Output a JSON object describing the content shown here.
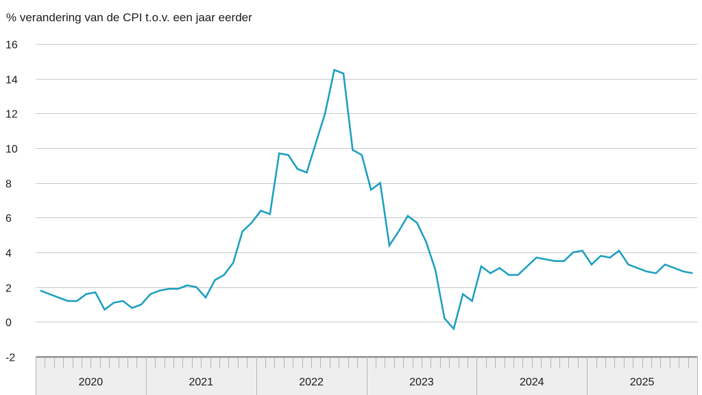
{
  "chart_data": {
    "type": "line",
    "title": "% verandering van de CPI t.o.v. een jaar eerder",
    "xlabel": "",
    "ylabel": "% verandering van de CPI t.o.v. een jaar eerder",
    "ylim": [
      -2,
      16
    ],
    "yticks": [
      -2,
      0,
      2,
      4,
      6,
      8,
      10,
      12,
      14,
      16
    ],
    "grid": true,
    "legend": null,
    "x_groups": [
      "2020",
      "2021",
      "2022",
      "2023",
      "2024",
      "2025"
    ],
    "x": [
      "2020-01",
      "2020-02",
      "2020-03",
      "2020-04",
      "2020-05",
      "2020-06",
      "2020-07",
      "2020-08",
      "2020-09",
      "2020-10",
      "2020-11",
      "2020-12",
      "2021-01",
      "2021-02",
      "2021-03",
      "2021-04",
      "2021-05",
      "2021-06",
      "2021-07",
      "2021-08",
      "2021-09",
      "2021-10",
      "2021-11",
      "2021-12",
      "2022-01",
      "2022-02",
      "2022-03",
      "2022-04",
      "2022-05",
      "2022-06",
      "2022-07",
      "2022-08",
      "2022-09",
      "2022-10",
      "2022-11",
      "2022-12",
      "2023-01",
      "2023-02",
      "2023-03",
      "2023-04",
      "2023-05",
      "2023-06",
      "2023-07",
      "2023-08",
      "2023-09",
      "2023-10",
      "2023-11",
      "2023-12",
      "2024-01",
      "2024-02",
      "2024-03",
      "2024-04",
      "2024-05",
      "2024-06",
      "2024-07",
      "2024-08",
      "2024-09",
      "2024-10",
      "2024-11",
      "2024-12",
      "2025-01",
      "2025-02",
      "2025-03",
      "2025-04",
      "2025-05",
      "2025-06",
      "2025-07",
      "2025-08",
      "2025-09",
      "2025-10",
      "2025-11",
      "2025-12"
    ],
    "series": [
      {
        "name": "CPI",
        "color": "#1e9fc0",
        "values": [
          1.8,
          1.6,
          1.4,
          1.2,
          1.2,
          1.6,
          1.7,
          0.7,
          1.1,
          1.2,
          0.8,
          1.0,
          1.6,
          1.8,
          1.9,
          1.9,
          2.1,
          2.0,
          1.4,
          2.4,
          2.7,
          3.4,
          5.2,
          5.7,
          6.4,
          6.2,
          9.7,
          9.6,
          8.8,
          8.6,
          10.3,
          12.0,
          14.5,
          14.3,
          9.9,
          9.6,
          7.6,
          8.0,
          4.4,
          5.2,
          6.1,
          5.7,
          4.6,
          3.0,
          0.2,
          -0.4,
          1.6,
          1.2,
          3.2,
          2.8,
          3.1,
          2.7,
          2.7,
          3.2,
          3.7,
          3.6,
          3.5,
          3.5,
          4.0,
          4.1,
          3.3,
          3.8,
          3.7,
          4.1,
          3.3,
          3.1,
          2.9,
          2.8,
          3.3,
          3.1,
          2.9,
          2.8
        ]
      }
    ]
  },
  "colors": {
    "line": "#1e9fc0",
    "grid": "#c8c8c8",
    "axis_band": "#eeeeee",
    "axis_border": "#7a7a7a",
    "tick": "#b4b4b4"
  }
}
